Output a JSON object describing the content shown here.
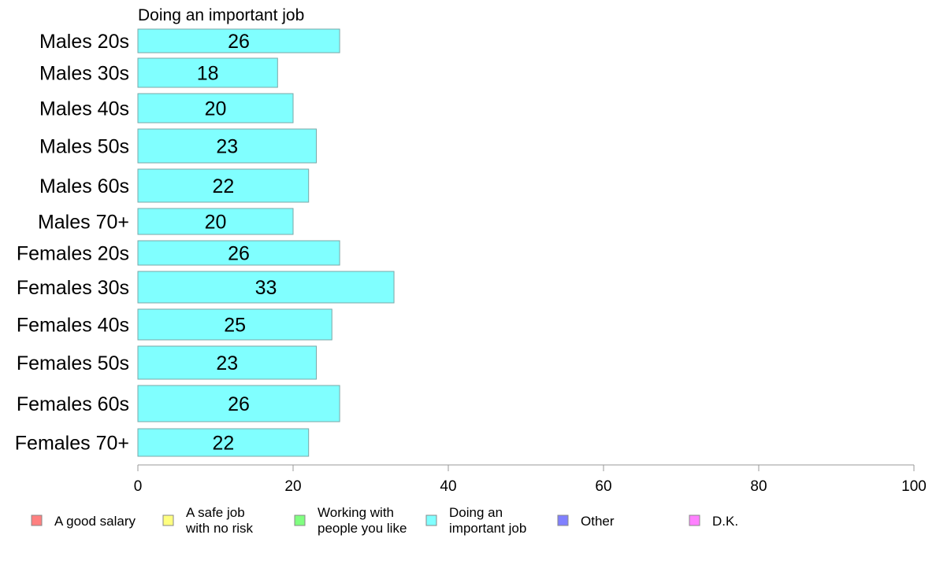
{
  "chart_data": {
    "type": "bar",
    "orientation": "horizontal",
    "title": "Doing an important job",
    "xlabel": "",
    "ylabel": "",
    "xlim": [
      0,
      100
    ],
    "xticks": [
      "0",
      "20",
      "40",
      "60",
      "80",
      "100"
    ],
    "categories": [
      "Males 20s",
      "Males 30s",
      "Males 40s",
      "Males 50s",
      "Males 60s",
      "Males 70+",
      "Females 20s",
      "Females 30s",
      "Females 40s",
      "Females 50s",
      "Females 60s",
      "Females 70+"
    ],
    "series": [
      {
        "name": "Doing an important job",
        "color": "#80ffff",
        "values": [
          26,
          18,
          20,
          23,
          22,
          20,
          26,
          33,
          25,
          23,
          26,
          22
        ],
        "labels": [
          "26",
          "18",
          "20",
          "23",
          "22",
          "20",
          "26",
          "33",
          "25",
          "23",
          "26",
          "22"
        ]
      }
    ],
    "legend": {
      "placement": "bottom",
      "entries": [
        {
          "lines": [
            "A good salary"
          ],
          "color": "#ff8080"
        },
        {
          "lines": [
            "A safe job",
            "with no risk"
          ],
          "color": "#ffff80"
        },
        {
          "lines": [
            "Working with",
            "people you like"
          ],
          "color": "#80ff80"
        },
        {
          "lines": [
            "Doing an",
            "important job"
          ],
          "color": "#80ffff"
        },
        {
          "lines": [
            "Other"
          ],
          "color": "#8080ff"
        },
        {
          "lines": [
            "D.K."
          ],
          "color": "#ff80ff"
        }
      ]
    },
    "grid": false
  }
}
